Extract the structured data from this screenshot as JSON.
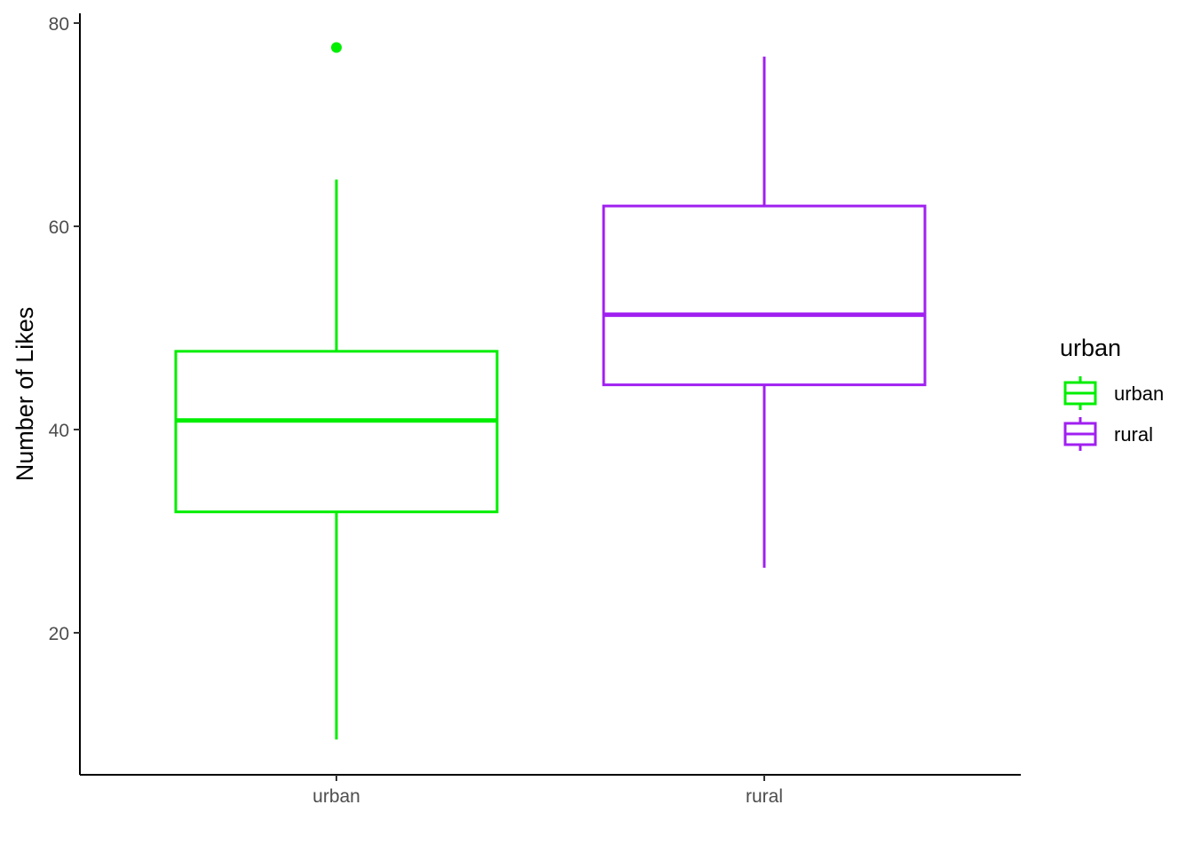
{
  "chart_data": {
    "type": "box",
    "title": "",
    "xlabel": "",
    "ylabel": "Number of Likes",
    "ylim": [
      7,
      81
    ],
    "yticks": [
      20,
      40,
      60,
      80
    ],
    "categories": [
      "urban",
      "rural"
    ],
    "grid": false,
    "legend": {
      "title": "urban",
      "position": "right",
      "entries": [
        {
          "label": "urban",
          "color": "#00ee00"
        },
        {
          "label": "rural",
          "color": "#a020f0"
        }
      ]
    },
    "series": [
      {
        "category": "urban",
        "color": "#00ee00",
        "whisker_low": 9.5,
        "q1": 31.9,
        "median": 40.9,
        "q3": 47.7,
        "whisker_high": 64.6,
        "outliers": [
          77.6
        ]
      },
      {
        "category": "rural",
        "color": "#a020f0",
        "whisker_low": 26.4,
        "q1": 44.4,
        "median": 51.3,
        "q3": 62.0,
        "whisker_high": 76.7,
        "outliers": []
      }
    ]
  }
}
